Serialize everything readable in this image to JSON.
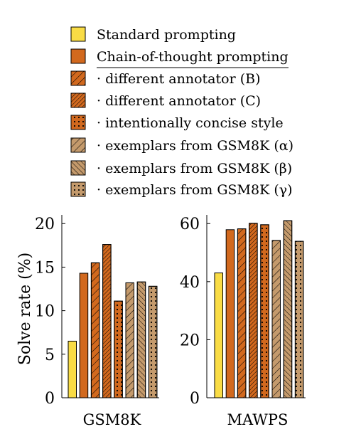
{
  "legend": {
    "items": [
      {
        "label": "Standard prompting",
        "color": "#F9DC45",
        "pattern": "solid"
      },
      {
        "label": "Chain-of-thought prompting",
        "color": "#D2691E",
        "pattern": "solid"
      },
      {
        "label": "· different annotator (B)",
        "color": "#D2691E",
        "pattern": "hatch-ne"
      },
      {
        "label": "· different annotator (C)",
        "color": "#D2691E",
        "pattern": "hatch-dense-ne"
      },
      {
        "label": "· intentionally concise style",
        "color": "#D2691E",
        "pattern": "dots"
      },
      {
        "label": "· exemplars from GSM8K (α)",
        "color": "#C49A6C",
        "pattern": "hatch-ne"
      },
      {
        "label": "· exemplars from GSM8K (β)",
        "color": "#C49A6C",
        "pattern": "hatch-nw"
      },
      {
        "label": "· exemplars from GSM8K (γ)",
        "color": "#C49A6C",
        "pattern": "dots"
      }
    ]
  },
  "chart_data": [
    {
      "type": "bar",
      "xlabel": "GSM8K",
      "ylabel": "Solve rate (%)",
      "ylim": [
        0,
        21
      ],
      "yticks": [
        0,
        5,
        10,
        15,
        20
      ],
      "categories": [
        "Standard prompting",
        "Chain-of-thought prompting",
        "· different annotator (B)",
        "· different annotator (C)",
        "· intentionally concise style",
        "· exemplars from GSM8K (α)",
        "· exemplars from GSM8K (β)",
        "· exemplars from GSM8K (γ)"
      ],
      "values": [
        6.5,
        14.3,
        15.5,
        17.6,
        11.1,
        13.2,
        13.3,
        12.8
      ]
    },
    {
      "type": "bar",
      "xlabel": "MAWPS",
      "ylabel": "",
      "ylim": [
        0,
        63
      ],
      "yticks": [
        0,
        20,
        40,
        60
      ],
      "categories": [
        "Standard prompting",
        "Chain-of-thought prompting",
        "· different annotator (B)",
        "· different annotator (C)",
        "· intentionally concise style",
        "· exemplars from GSM8K (α)",
        "· exemplars from GSM8K (β)",
        "· exemplars from GSM8K (γ)"
      ],
      "values": [
        43.0,
        57.9,
        58.2,
        60.1,
        59.6,
        54.2,
        61.0,
        53.9
      ]
    }
  ]
}
